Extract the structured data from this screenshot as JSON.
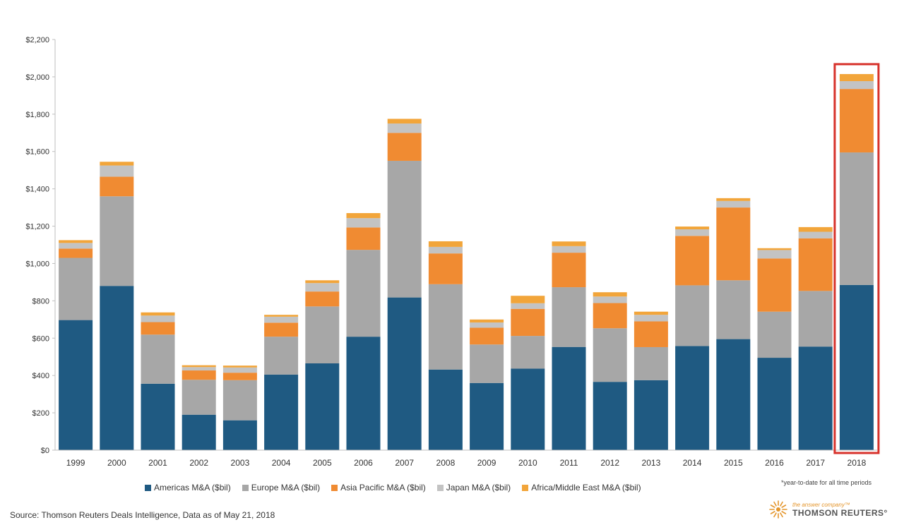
{
  "chart_data": {
    "type": "bar",
    "stacked": true,
    "categories": [
      "1999",
      "2000",
      "2001",
      "2002",
      "2003",
      "2004",
      "2005",
      "2006",
      "2007",
      "2008",
      "2009",
      "2010",
      "2011",
      "2012",
      "2013",
      "2014",
      "2015",
      "2016",
      "2017",
      "2018"
    ],
    "series": [
      {
        "name": "Americas M&A ($bil)",
        "color": "#1f5a82",
        "values": [
          697,
          880,
          356,
          190,
          160,
          405,
          465,
          608,
          818,
          432,
          360,
          437,
          553,
          366,
          375,
          558,
          595,
          495,
          555,
          885
        ]
      },
      {
        "name": "Europe M&A ($bil)",
        "color": "#a7a7a7",
        "values": [
          333,
          480,
          263,
          187,
          215,
          203,
          305,
          465,
          732,
          457,
          206,
          175,
          320,
          287,
          177,
          325,
          315,
          247,
          298,
          710
        ]
      },
      {
        "name": "Asia Pacific M&A ($bil)",
        "color": "#f08b32",
        "values": [
          50,
          105,
          67,
          50,
          40,
          75,
          80,
          120,
          150,
          165,
          90,
          145,
          185,
          135,
          138,
          265,
          390,
          285,
          282,
          340
        ]
      },
      {
        "name": "Japan M&A ($bil)",
        "color": "#c3c3c3",
        "values": [
          30,
          60,
          35,
          18,
          28,
          32,
          45,
          50,
          50,
          35,
          28,
          30,
          35,
          35,
          35,
          35,
          35,
          45,
          35,
          42
        ]
      },
      {
        "name": "Africa/Middle East M&A ($bil)",
        "color": "#f2a53a",
        "values": [
          15,
          20,
          17,
          10,
          10,
          10,
          15,
          27,
          25,
          30,
          16,
          40,
          25,
          23,
          17,
          15,
          15,
          10,
          25,
          38
        ]
      }
    ],
    "yticks": [
      "$0",
      "$200",
      "$400",
      "$600",
      "$800",
      "$1,000",
      "$1,200",
      "$1,400",
      "$1,600",
      "$1,800",
      "$2,000",
      "$2,200"
    ],
    "ylim": [
      0,
      2200
    ],
    "highlight_category": "2018",
    "highlight_color": "#d7322b",
    "grid": false,
    "legend_position": "bottom"
  },
  "footer": {
    "note": "*year-to-date for all time periods",
    "source": "Source:  Thomson Reuters Deals Intelligence,  Data as of May 21, 2018",
    "tagline": "the answer company™",
    "brand": "THOMSON REUTERS°"
  }
}
